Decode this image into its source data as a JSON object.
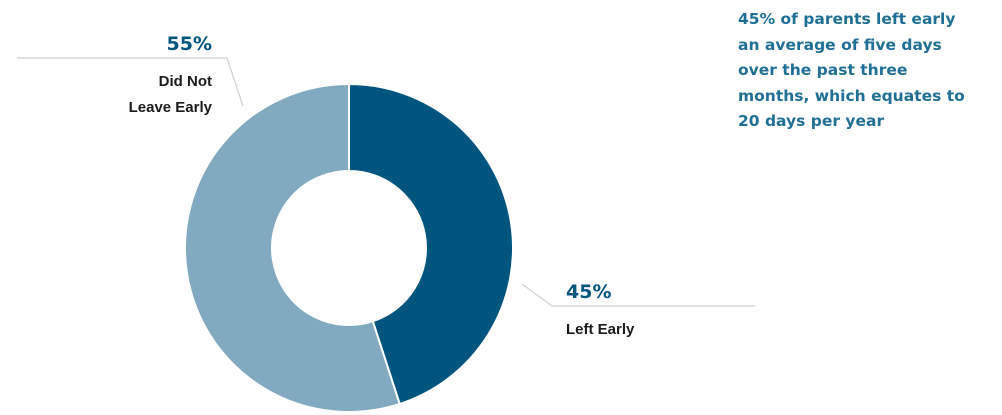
{
  "chart_data": {
    "type": "pie",
    "donut": true,
    "slices": [
      {
        "label_lines": [
          "Left Early"
        ],
        "value": 45,
        "value_label": "45%",
        "color": "#00557f"
      },
      {
        "label_lines": [
          "Did Not",
          "Leave Early"
        ],
        "value": 55,
        "value_label": "55%",
        "color": "#81a9c0"
      }
    ],
    "start_angle_deg": 0,
    "direction": "clockwise"
  },
  "callout": {
    "lines": [
      "45% of parents left early",
      "an average of five days",
      "over the past three",
      "months, which equates to",
      "20 days per year"
    ],
    "color": "#1f6f97"
  }
}
